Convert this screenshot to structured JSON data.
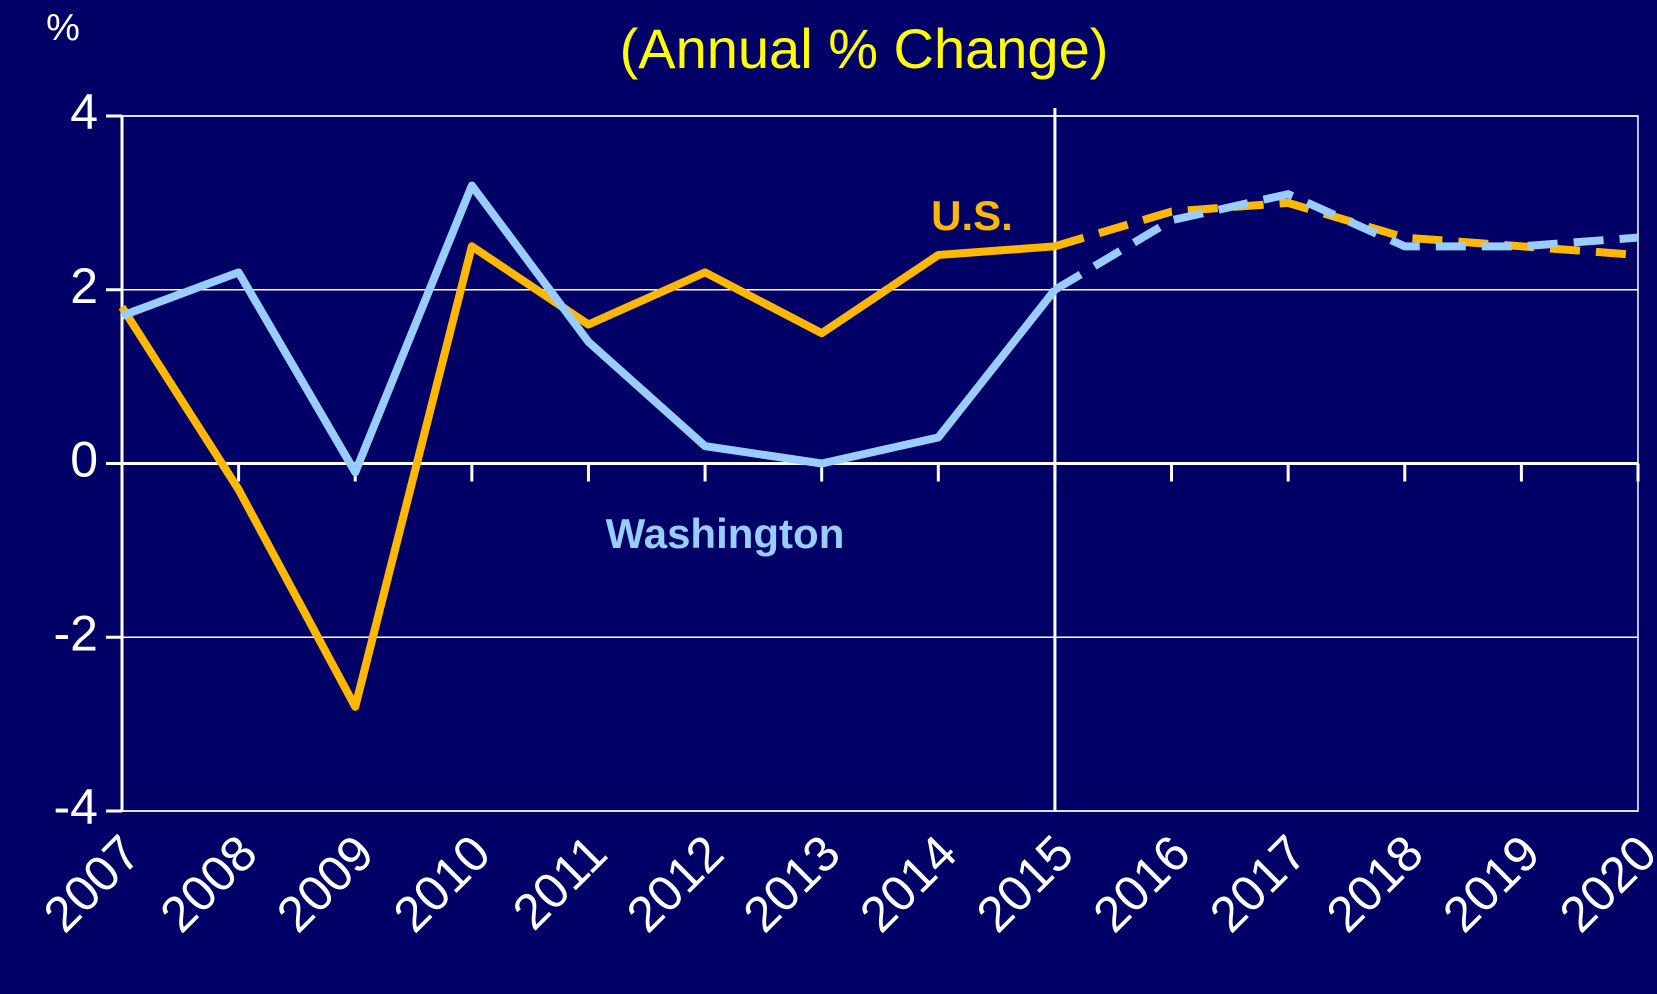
{
  "chart_data": {
    "type": "line",
    "title": "(Annual % Change)",
    "y_axis_label": "%",
    "x": [
      2007,
      2008,
      2009,
      2010,
      2011,
      2012,
      2013,
      2014,
      2015,
      2016,
      2017,
      2018,
      2019,
      2020
    ],
    "xlim": [
      2007,
      2020
    ],
    "xticks": [
      2007,
      2008,
      2009,
      2010,
      2011,
      2012,
      2013,
      2014,
      2015,
      2016,
      2017,
      2018,
      2019,
      2020
    ],
    "ylim": [
      -4,
      4
    ],
    "yticks": [
      -4,
      -2,
      0,
      2,
      4
    ],
    "grid": true,
    "forecast_start": 2015,
    "series": [
      {
        "name": "U.S.",
        "color": "#ffb800",
        "values": [
          1.8,
          -0.3,
          -2.8,
          2.5,
          1.6,
          2.2,
          1.5,
          2.4,
          2.5,
          2.9,
          3.0,
          2.6,
          2.5,
          2.4
        ]
      },
      {
        "name": "Washington",
        "color": "#99ccff",
        "values": [
          1.7,
          2.2,
          -0.1,
          3.2,
          1.4,
          0.2,
          0.0,
          0.3,
          2.0,
          2.8,
          3.1,
          2.5,
          2.5,
          2.6
        ]
      }
    ]
  }
}
